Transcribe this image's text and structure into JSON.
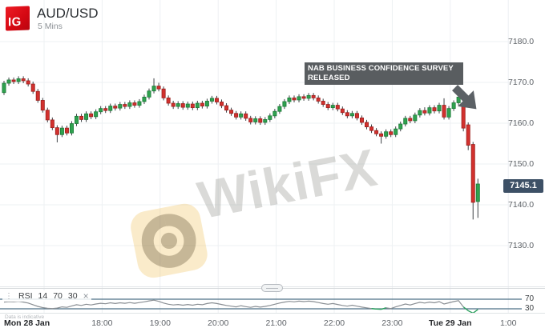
{
  "header": {
    "logo": "IG",
    "symbol": "AUD/USD",
    "timeframe": "5 Mins"
  },
  "annotation": {
    "line1": "NAB BUSINESS CONFIDENCE SURVEY",
    "line2": "RELEASED"
  },
  "price_axis": {
    "labels": [
      "7180.0",
      "7170.0",
      "7160.0",
      "7150.0",
      "7140.0",
      "7130.0"
    ],
    "values": [
      7180,
      7170,
      7160,
      7150,
      7140,
      7130
    ],
    "last_price": "7145.1"
  },
  "time_axis": {
    "labels": [
      {
        "text": "Mon 28 Jan",
        "bold": true,
        "grid": null
      },
      {
        "text": "18:00",
        "bold": false,
        "grid": 1
      },
      {
        "text": "19:00",
        "bold": false,
        "grid": 2
      },
      {
        "text": "20:00",
        "bold": false,
        "grid": 3
      },
      {
        "text": "21:00",
        "bold": false,
        "grid": 4
      },
      {
        "text": "22:00",
        "bold": false,
        "grid": 5
      },
      {
        "text": "23:00",
        "bold": false,
        "grid": 6
      },
      {
        "text": "Tue 29 Jan",
        "bold": true,
        "grid": 7
      },
      {
        "text": "1:00",
        "bold": false,
        "grid": 8
      }
    ]
  },
  "indicator": {
    "menu_icon": "⋮",
    "name": "RSI",
    "params": [
      "14",
      "70",
      "30"
    ],
    "close_icon": "×",
    "upper_label": "70",
    "lower_label": "30"
  },
  "footnote": "Data is indicative",
  "watermark": {
    "text": "WikiFX"
  },
  "colors": {
    "brand_red": "#d40712",
    "candle_up": "#2fa24f",
    "candle_up_border": "#1d7a38",
    "candle_down": "#d2312e",
    "candle_down_border": "#9c1f1d",
    "wick": "#3f4347",
    "grid": "#edf0f3",
    "badge_bg": "#3d5066",
    "annotation_bg": "#52565a",
    "rsi_level_line": "#4d7186",
    "rsi_line": "#8a8f94",
    "rsi_oversold": "#27a35c",
    "arrow": "#5c6166"
  },
  "chart_data": {
    "type": "candlestick",
    "title": "AUD/USD",
    "interval": "5 Mins",
    "x_start": "Mon 28 Jan 16:20",
    "x_end": "Tue 29 Jan 00:30",
    "ylim": [
      7130,
      7180
    ],
    "annotation_event": "NAB BUSINESS CONFIDENCE SURVEY RELEASED",
    "last_price": 7145.1,
    "candles_ohlc": [
      [
        7167.5,
        7170.4,
        7166.9,
        7169.8
      ],
      [
        7169.8,
        7171.2,
        7169.2,
        7170.6
      ],
      [
        7170.6,
        7171.2,
        7169.6,
        7170.2
      ],
      [
        7170.2,
        7171.5,
        7169.6,
        7170.9
      ],
      [
        7170.9,
        7171.5,
        7169.8,
        7170.4
      ],
      [
        7170.4,
        7171.0,
        7169.0,
        7169.6
      ],
      [
        7169.6,
        7170.2,
        7167.2,
        7167.8
      ],
      [
        7167.8,
        7168.4,
        7165.0,
        7165.6
      ],
      [
        7165.6,
        7166.2,
        7162.6,
        7163.2
      ],
      [
        7163.2,
        7163.8,
        7160.2,
        7160.8
      ],
      [
        7160.8,
        7161.4,
        7158.3,
        7158.9
      ],
      [
        7158.9,
        7159.5,
        7155.3,
        7157.2
      ],
      [
        7157.2,
        7159.4,
        7156.6,
        7158.8
      ],
      [
        7158.8,
        7159.4,
        7157.0,
        7157.6
      ],
      [
        7157.6,
        7160.5,
        7157.0,
        7159.9
      ],
      [
        7159.9,
        7162.3,
        7159.3,
        7161.7
      ],
      [
        7161.7,
        7162.3,
        7160.3,
        7160.9
      ],
      [
        7160.9,
        7162.9,
        7160.3,
        7162.3
      ],
      [
        7162.3,
        7162.9,
        7161.0,
        7161.6
      ],
      [
        7161.6,
        7163.4,
        7161.0,
        7162.8
      ],
      [
        7162.8,
        7164.2,
        7162.2,
        7163.6
      ],
      [
        7163.6,
        7164.2,
        7162.5,
        7163.1
      ],
      [
        7163.1,
        7164.8,
        7162.5,
        7164.2
      ],
      [
        7164.2,
        7164.8,
        7163.1,
        7163.7
      ],
      [
        7163.7,
        7165.2,
        7163.1,
        7164.6
      ],
      [
        7164.6,
        7165.2,
        7163.5,
        7164.1
      ],
      [
        7164.1,
        7165.6,
        7163.5,
        7165.0
      ],
      [
        7165.0,
        7165.6,
        7163.8,
        7164.4
      ],
      [
        7164.4,
        7165.9,
        7163.8,
        7165.3
      ],
      [
        7165.3,
        7167.0,
        7164.7,
        7166.4
      ],
      [
        7166.4,
        7168.5,
        7165.8,
        7167.9
      ],
      [
        7167.9,
        7171.0,
        7167.3,
        7169.1
      ],
      [
        7169.1,
        7169.9,
        7167.8,
        7168.4
      ],
      [
        7168.4,
        7169.0,
        7165.6,
        7166.2
      ],
      [
        7166.2,
        7166.8,
        7164.3,
        7164.9
      ],
      [
        7164.9,
        7165.5,
        7163.5,
        7164.1
      ],
      [
        7164.1,
        7165.4,
        7163.5,
        7164.8
      ],
      [
        7164.8,
        7165.4,
        7163.3,
        7163.9
      ],
      [
        7163.9,
        7165.3,
        7163.3,
        7164.7
      ],
      [
        7164.7,
        7165.3,
        7163.2,
        7163.8
      ],
      [
        7163.8,
        7165.5,
        7163.2,
        7164.9
      ],
      [
        7164.9,
        7165.5,
        7163.6,
        7164.2
      ],
      [
        7164.2,
        7166.0,
        7163.6,
        7165.4
      ],
      [
        7165.4,
        7166.7,
        7164.8,
        7166.1
      ],
      [
        7166.1,
        7166.7,
        7164.6,
        7165.2
      ],
      [
        7165.2,
        7165.8,
        7163.7,
        7164.3
      ],
      [
        7164.3,
        7164.9,
        7162.6,
        7163.2
      ],
      [
        7163.2,
        7163.8,
        7161.8,
        7162.4
      ],
      [
        7162.4,
        7163.0,
        7160.9,
        7161.5
      ],
      [
        7161.5,
        7162.9,
        7160.9,
        7162.3
      ],
      [
        7162.3,
        7162.9,
        7160.6,
        7161.2
      ],
      [
        7161.2,
        7161.8,
        7159.7,
        7160.3
      ],
      [
        7160.3,
        7161.7,
        7159.7,
        7161.1
      ],
      [
        7161.1,
        7161.7,
        7159.6,
        7160.2
      ],
      [
        7160.2,
        7161.5,
        7159.6,
        7160.9
      ],
      [
        7160.9,
        7162.4,
        7160.3,
        7161.8
      ],
      [
        7161.8,
        7163.5,
        7161.2,
        7162.9
      ],
      [
        7162.9,
        7164.7,
        7162.3,
        7164.1
      ],
      [
        7164.1,
        7165.9,
        7163.5,
        7165.3
      ],
      [
        7165.3,
        7166.8,
        7164.7,
        7166.2
      ],
      [
        7166.2,
        7166.8,
        7165.1,
        7165.7
      ],
      [
        7165.7,
        7167.1,
        7165.1,
        7166.5
      ],
      [
        7166.5,
        7167.1,
        7165.5,
        7166.1
      ],
      [
        7166.1,
        7167.4,
        7165.5,
        7166.8
      ],
      [
        7166.8,
        7167.4,
        7165.6,
        7166.2
      ],
      [
        7166.2,
        7166.8,
        7164.8,
        7165.4
      ],
      [
        7165.4,
        7166.0,
        7164.0,
        7164.6
      ],
      [
        7164.6,
        7165.2,
        7163.2,
        7163.8
      ],
      [
        7163.8,
        7165.0,
        7163.2,
        7164.4
      ],
      [
        7164.4,
        7165.0,
        7162.9,
        7163.5
      ],
      [
        7163.5,
        7164.1,
        7162.0,
        7162.6
      ],
      [
        7162.6,
        7163.2,
        7161.2,
        7161.8
      ],
      [
        7161.8,
        7163.0,
        7161.2,
        7162.4
      ],
      [
        7162.4,
        7163.0,
        7160.7,
        7161.3
      ],
      [
        7161.3,
        7161.9,
        7159.6,
        7160.2
      ],
      [
        7160.2,
        7160.8,
        7158.5,
        7159.1
      ],
      [
        7159.1,
        7159.7,
        7157.6,
        7158.2
      ],
      [
        7158.2,
        7158.8,
        7156.8,
        7157.4
      ],
      [
        7157.4,
        7158.0,
        7155.0,
        7156.8
      ],
      [
        7156.8,
        7158.5,
        7156.2,
        7157.9
      ],
      [
        7157.9,
        7158.5,
        7156.6,
        7157.2
      ],
      [
        7157.2,
        7159.2,
        7156.6,
        7158.6
      ],
      [
        7158.6,
        7160.4,
        7158.0,
        7159.8
      ],
      [
        7159.8,
        7161.8,
        7159.2,
        7161.2
      ],
      [
        7161.2,
        7161.8,
        7160.0,
        7160.6
      ],
      [
        7160.6,
        7162.6,
        7160.0,
        7162.0
      ],
      [
        7162.0,
        7163.7,
        7161.4,
        7163.1
      ],
      [
        7163.1,
        7163.9,
        7161.9,
        7162.5
      ],
      [
        7162.5,
        7164.4,
        7161.9,
        7163.8
      ],
      [
        7163.8,
        7164.4,
        7162.4,
        7163.0
      ],
      [
        7163.0,
        7165.0,
        7162.4,
        7164.4
      ],
      [
        7164.4,
        7166.1,
        7160.9,
        7161.5
      ],
      [
        7161.5,
        7164.2,
        7160.9,
        7163.6
      ],
      [
        7163.6,
        7165.6,
        7163.0,
        7165.0
      ],
      [
        7165.0,
        7167.2,
        7164.4,
        7166.4
      ],
      [
        7164.8,
        7166.8,
        7158.0,
        7158.8
      ],
      [
        7159.6,
        7160.2,
        7153.4,
        7154.6
      ],
      [
        7154.8,
        7155.4,
        7136.4,
        7140.6
      ],
      [
        7140.8,
        7146.4,
        7136.8,
        7145.1
      ]
    ],
    "rsi": {
      "period": 14,
      "upper": 70,
      "lower": 30,
      "values": [
        58,
        60,
        59,
        61,
        58,
        54,
        47,
        40,
        35,
        32,
        31,
        33,
        38,
        36,
        42,
        47,
        44,
        49,
        46,
        50,
        53,
        51,
        55,
        52,
        55,
        53,
        56,
        53,
        56,
        59,
        63,
        66,
        61,
        54,
        49,
        46,
        48,
        45,
        48,
        45,
        49,
        47,
        52,
        55,
        52,
        48,
        44,
        41,
        38,
        43,
        39,
        36,
        40,
        37,
        40,
        44,
        49,
        54,
        58,
        61,
        59,
        62,
        60,
        62,
        60,
        56,
        52,
        49,
        52,
        48,
        44,
        41,
        45,
        41,
        37,
        34,
        31,
        29,
        28,
        34,
        31,
        38,
        44,
        50,
        46,
        52,
        57,
        54,
        58,
        55,
        60,
        50,
        55,
        60,
        64,
        38,
        22,
        12,
        27
      ]
    }
  }
}
